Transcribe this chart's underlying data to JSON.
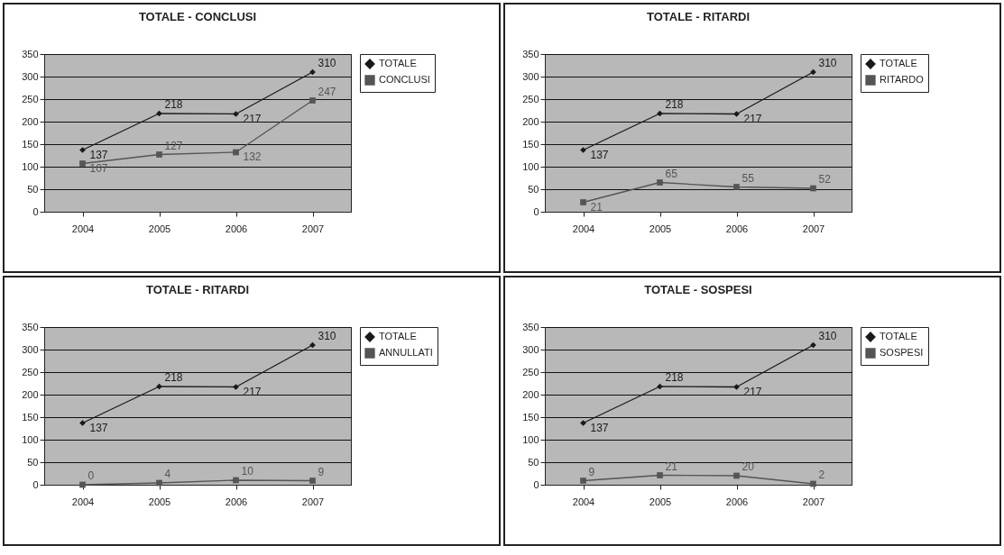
{
  "chart_data": [
    {
      "type": "line",
      "title": "TOTALE - CONCLUSI",
      "categories": [
        "2004",
        "2005",
        "2006",
        "2007"
      ],
      "series": [
        {
          "name": "TOTALE",
          "color": "#1a1a1a",
          "marker": "diamond",
          "values": [
            137,
            218,
            217,
            310
          ]
        },
        {
          "name": "CONCLUSI",
          "color": "#555555",
          "marker": "square",
          "values": [
            107,
            127,
            132,
            247
          ]
        }
      ],
      "ylim": [
        0,
        350
      ],
      "yticks": [
        0,
        50,
        100,
        150,
        200,
        250,
        300,
        350
      ],
      "grid": "y",
      "legend": "right",
      "data_labels": true
    },
    {
      "type": "line",
      "title": "TOTALE - RITARDI",
      "categories": [
        "2004",
        "2005",
        "2006",
        "2007"
      ],
      "series": [
        {
          "name": "TOTALE",
          "color": "#1a1a1a",
          "marker": "diamond",
          "values": [
            137,
            218,
            217,
            310
          ]
        },
        {
          "name": "RITARDO",
          "color": "#555555",
          "marker": "square",
          "values": [
            21,
            65,
            55,
            52
          ]
        }
      ],
      "ylim": [
        0,
        350
      ],
      "yticks": [
        0,
        50,
        100,
        150,
        200,
        250,
        300,
        350
      ],
      "grid": "y",
      "legend": "right",
      "data_labels": true
    },
    {
      "type": "line",
      "title": "TOTALE - RITARDI",
      "categories": [
        "2004",
        "2005",
        "2006",
        "2007"
      ],
      "series": [
        {
          "name": "TOTALE",
          "color": "#1a1a1a",
          "marker": "diamond",
          "values": [
            137,
            218,
            217,
            310
          ]
        },
        {
          "name": "ANNULLATI",
          "color": "#555555",
          "marker": "square",
          "values": [
            0,
            4,
            10,
            9
          ]
        }
      ],
      "ylim": [
        0,
        350
      ],
      "yticks": [
        0,
        50,
        100,
        150,
        200,
        250,
        300,
        350
      ],
      "grid": "y",
      "legend": "right",
      "data_labels": true
    },
    {
      "type": "line",
      "title": "TOTALE - SOSPESI",
      "categories": [
        "2004",
        "2005",
        "2006",
        "2007"
      ],
      "series": [
        {
          "name": "TOTALE",
          "color": "#1a1a1a",
          "marker": "diamond",
          "values": [
            137,
            218,
            217,
            310
          ]
        },
        {
          "name": "SOSPESI",
          "color": "#555555",
          "marker": "square",
          "values": [
            9,
            21,
            20,
            2
          ]
        }
      ],
      "ylim": [
        0,
        350
      ],
      "yticks": [
        0,
        50,
        100,
        150,
        200,
        250,
        300,
        350
      ],
      "grid": "y",
      "legend": "right",
      "data_labels": true
    }
  ]
}
